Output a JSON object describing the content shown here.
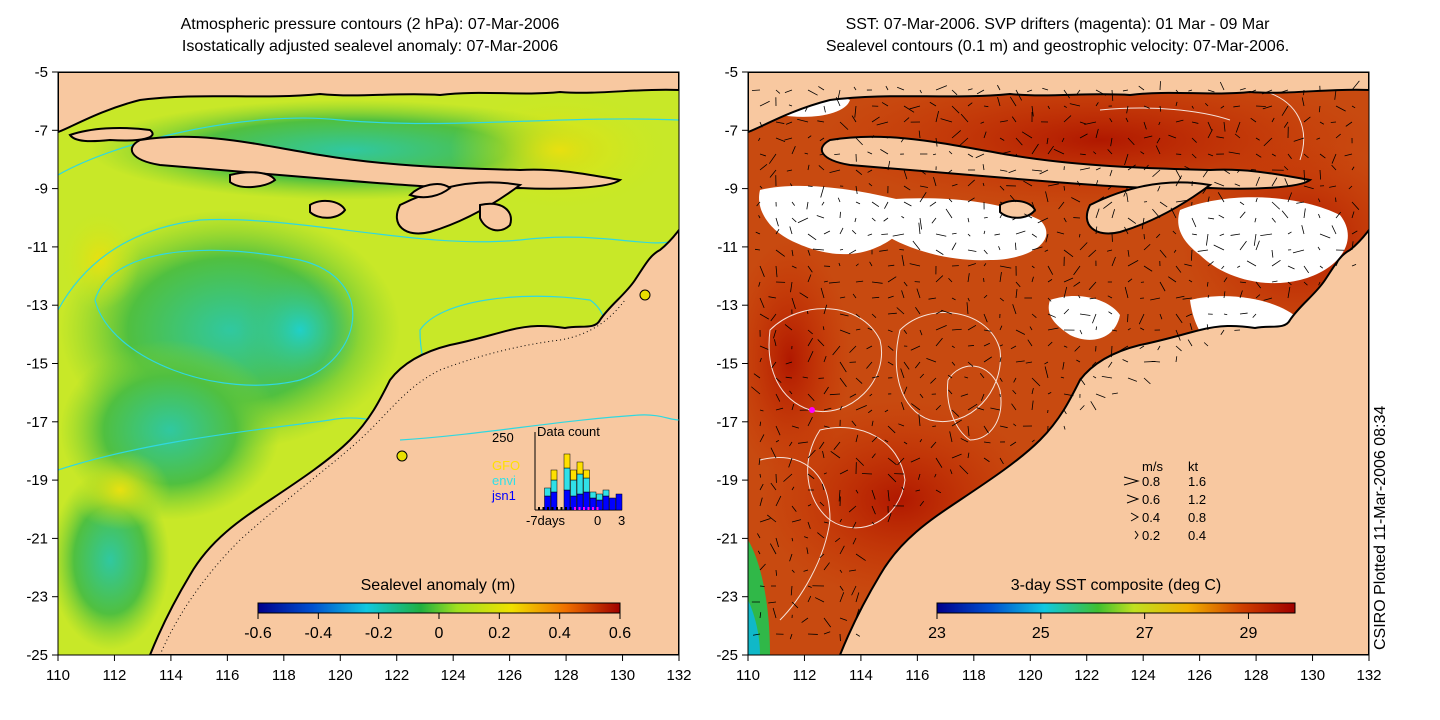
{
  "left_panel": {
    "title_line1": "Atmospheric pressure contours (2 hPa): 07-Mar-2006",
    "title_line2": "Isostatically adjusted sealevel anomaly: 07-Mar-2006",
    "colorbar": {
      "label": "Sealevel anomaly (m)",
      "ticks": [
        "-0.6",
        "-0.4",
        "-0.2",
        "0",
        "0.2",
        "0.4",
        "0.6"
      ]
    },
    "inset": {
      "title": "Data count",
      "ymax_label": "250",
      "legend": [
        {
          "name": "GFO",
          "color": "#ffe000"
        },
        {
          "name": "envi",
          "color": "#30e0e8"
        },
        {
          "name": "jsn1",
          "color": "#0000ff"
        }
      ],
      "xticks": [
        "-7days",
        "0",
        "3"
      ]
    }
  },
  "right_panel": {
    "title_line1": "SST: 07-Mar-2006. SVP drifters (magenta): 01 Mar - 09 Mar",
    "title_line2": "Sealevel contours (0.1 m) and geostrophic velocity: 07-Mar-2006.",
    "colorbar": {
      "label": "3-day SST composite (deg C)",
      "ticks": [
        "23",
        "25",
        "27",
        "29"
      ]
    },
    "velocity_legend": {
      "header_ms": "m/s",
      "header_kt": "kt",
      "rows": [
        {
          "ms": "0.8",
          "kt": "1.6"
        },
        {
          "ms": "0.6",
          "kt": "1.2"
        },
        {
          "ms": "0.4",
          "kt": "0.8"
        },
        {
          "ms": "0.2",
          "kt": "0.4"
        }
      ]
    }
  },
  "axes": {
    "x_ticks": [
      "110",
      "112",
      "114",
      "116",
      "118",
      "120",
      "122",
      "124",
      "126",
      "128",
      "130",
      "132"
    ],
    "y_ticks": [
      "-5",
      "-7",
      "-9",
      "-11",
      "-13",
      "-15",
      "-17",
      "-19",
      "-21",
      "-23",
      "-25"
    ]
  },
  "credit": "CSIRO Plotted 11-Mar-2006 08:34",
  "colors": {
    "land": "#f8c8a0",
    "ocean_green": "#66cc33",
    "ocean_yellowgreen": "#ccee22",
    "sst_red": "#c02800",
    "sst_orange": "#d86010",
    "cloud_white": "#ffffff",
    "pressure_contour": "#30d8e0"
  }
}
